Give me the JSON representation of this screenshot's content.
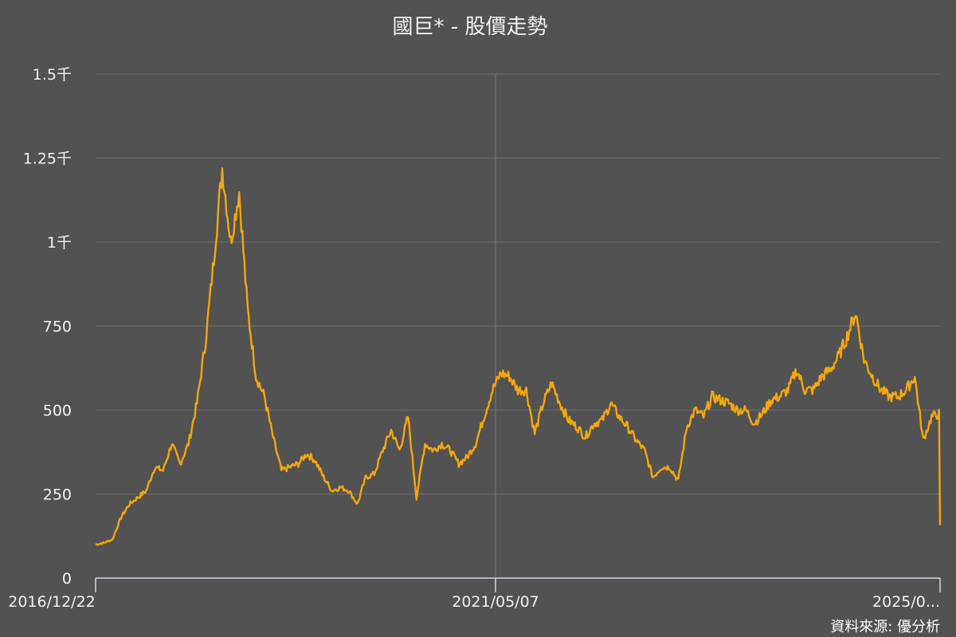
{
  "chart_data": {
    "type": "line",
    "title": "國巨* - 股價走勢",
    "source": "資料來源: 優分析",
    "xlabel": "",
    "ylabel": "",
    "ylim": [
      0,
      1500
    ],
    "y_ticks": [
      {
        "value": 0,
        "label": "0"
      },
      {
        "value": 250,
        "label": "250"
      },
      {
        "value": 500,
        "label": "500"
      },
      {
        "value": 750,
        "label": "750"
      },
      {
        "value": 1000,
        "label": "1千"
      },
      {
        "value": 1250,
        "label": "1.25千"
      },
      {
        "value": 1500,
        "label": "1.5千"
      }
    ],
    "x_ticks": [
      "2016/12/22",
      "2021/05/07",
      "2025/0..."
    ],
    "grid": true,
    "legend": "none",
    "colors": {
      "background": "#525252",
      "line": "#f5a60a",
      "text": "#f2f2f2"
    },
    "series": [
      {
        "x": [
          "2016-12-22",
          "2017-02",
          "2017-03",
          "2017-04",
          "2017-05",
          "2017-06",
          "2017-07",
          "2017-08",
          "2017-09",
          "2017-10",
          "2017-11",
          "2017-12",
          "2018-01",
          "2018-02",
          "2018-03",
          "2018-04",
          "2018-05",
          "2018-06",
          "2018-07",
          "2018-08",
          "2018-09",
          "2018-10",
          "2018-11",
          "2018-12",
          "2019-01",
          "2019-02",
          "2019-03",
          "2019-04",
          "2019-05",
          "2019-06",
          "2019-07",
          "2019-08",
          "2019-09",
          "2019-10",
          "2019-11",
          "2019-12",
          "2020-01",
          "2020-02",
          "2020-03",
          "2020-04",
          "2020-05",
          "2020-06",
          "2020-07",
          "2020-08",
          "2020-09",
          "2020-10",
          "2020-11",
          "2020-12",
          "2021-01",
          "2021-02",
          "2021-03",
          "2021-04",
          "2021-05",
          "2021-06",
          "2021-07",
          "2021-08",
          "2021-09",
          "2021-10",
          "2021-11",
          "2021-12",
          "2022-01",
          "2022-02",
          "2022-03",
          "2022-04",
          "2022-05",
          "2022-06",
          "2022-07",
          "2022-08",
          "2022-09",
          "2022-10",
          "2022-11",
          "2022-12",
          "2023-01",
          "2023-02",
          "2023-03",
          "2023-04",
          "2023-05",
          "2023-06",
          "2023-07",
          "2023-08",
          "2023-09",
          "2023-10",
          "2023-11",
          "2023-12",
          "2024-01",
          "2024-02",
          "2024-03",
          "2024-04",
          "2024-05",
          "2024-06",
          "2024-07",
          "2024-08",
          "2024-09",
          "2024-10",
          "2024-11",
          "2024-12",
          "2025-01",
          "2025-02",
          "2025-03",
          "2025-04",
          "2025-05"
        ],
        "values": [
          100,
          105,
          115,
          180,
          220,
          240,
          260,
          330,
          320,
          400,
          340,
          400,
          520,
          700,
          950,
          1220,
          1000,
          1150,
          800,
          600,
          540,
          420,
          320,
          330,
          340,
          370,
          350,
          300,
          260,
          270,
          260,
          220,
          300,
          310,
          380,
          440,
          380,
          480,
          240,
          400,
          380,
          400,
          380,
          340,
          360,
          400,
          480,
          560,
          610,
          600,
          560,
          560,
          430,
          520,
          580,
          520,
          470,
          450,
          420,
          460,
          470,
          520,
          480,
          450,
          410,
          380,
          300,
          330,
          330,
          290,
          450,
          500,
          480,
          540,
          530,
          520,
          500,
          500,
          460,
          490,
          530,
          540,
          560,
          620,
          560,
          560,
          600,
          620,
          660,
          720,
          790,
          650,
          600,
          560,
          540,
          540,
          560,
          600,
          410,
          480,
          490
        ]
      }
    ]
  }
}
